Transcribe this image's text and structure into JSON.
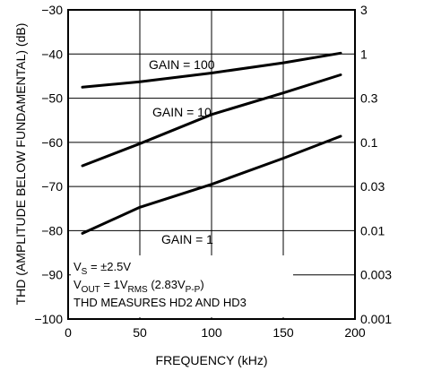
{
  "chart_data": {
    "type": "line",
    "xlabel": "FREQUENCY (kHz)",
    "ylabel": "THD (AMPLITUDE BELOW FUNDAMENTAL) (dB)",
    "xlim": [
      0,
      200
    ],
    "ylim": [
      -100,
      -30
    ],
    "x_ticks": [
      "0",
      "50",
      "100",
      "150",
      "200"
    ],
    "y_ticks": [
      "−100",
      "−90",
      "−80",
      "−70",
      "−60",
      "−50",
      "−40",
      "−30"
    ],
    "y2_ticks": [
      "0.001",
      "0.003",
      "0.01",
      "0.03",
      "0.1",
      "0.3",
      "1",
      "3"
    ],
    "grid": true,
    "series": [
      {
        "name": "GAIN = 100",
        "x": [
          10,
          50,
          100,
          150,
          190
        ],
        "y": [
          -47.5,
          -46.3,
          -44.3,
          -42,
          -39.8
        ]
      },
      {
        "name": "GAIN = 10",
        "x": [
          10,
          50,
          100,
          150,
          190
        ],
        "y": [
          -65.3,
          -60.3,
          -53.7,
          -48.8,
          -44.7
        ]
      },
      {
        "name": "GAIN = 1",
        "x": [
          10,
          50,
          100,
          150,
          190
        ],
        "y": [
          -80.6,
          -74.7,
          -69.5,
          -63.6,
          -58.6
        ]
      }
    ],
    "annotations": {
      "line1_main": "V",
      "line1_sub": "S",
      "line1_rest": " = ±2.5V",
      "line2_main": "V",
      "line2_sub": "OUT",
      "line2_mid": " = 1V",
      "line2_sub2": "RMS",
      "line2_rest": " (2.83V",
      "line2_sub3": "P-P",
      "line2_end": ")",
      "line3": "THD MEASURES HD2 AND HD3"
    }
  }
}
